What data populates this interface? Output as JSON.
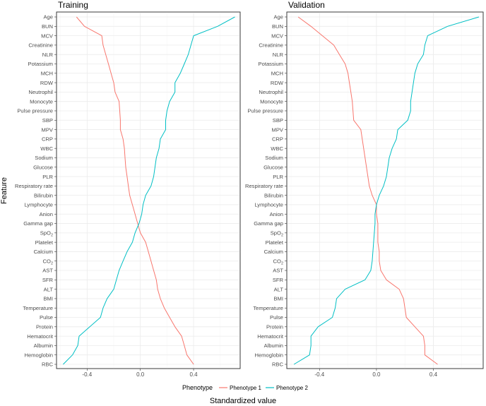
{
  "chart_data": {
    "type": "line",
    "orientation": "horizontal-profile",
    "xlabel": "Standardized value",
    "ylabel": "Feature",
    "xlim": [
      -0.63,
      0.75
    ],
    "xticks": [
      "-0.4",
      "0.0",
      "0.4"
    ],
    "xtick_values": [
      -0.4,
      0.0,
      0.4
    ],
    "features": [
      "Age",
      "BUN",
      "MCV",
      "Creatinine",
      "NLR",
      "Potassium",
      "MCH",
      "RDW",
      "Neutrophil",
      "Monocyte",
      "Pulse pressure",
      "SBP",
      "MPV",
      "CRP",
      "WBC",
      "Sodium",
      "Glucose",
      "PLR",
      "Respiratory rate",
      "Bilirubin",
      "Lymphocyte",
      "Anion",
      "Gamma gap",
      "SpO2",
      "Platelet",
      "Calcium",
      "CO2",
      "AST",
      "SFR",
      "ALT",
      "BMI",
      "Temperature",
      "Pulse",
      "Protein",
      "Hematocrit",
      "Albumin",
      "Hemoglobin",
      "RBC"
    ],
    "grid": true,
    "legend": {
      "title": "Phenotype",
      "position": "bottom"
    },
    "panels": [
      {
        "title": "Training",
        "series": [
          {
            "name": "Phenotype 1",
            "color": "#F8766D",
            "values": [
              -0.48,
              -0.42,
              -0.29,
              -0.28,
              -0.26,
              -0.24,
              -0.22,
              -0.2,
              -0.19,
              -0.16,
              -0.155,
              -0.15,
              -0.15,
              -0.13,
              -0.12,
              -0.115,
              -0.11,
              -0.1,
              -0.09,
              -0.08,
              -0.06,
              -0.04,
              -0.02,
              0.0,
              0.04,
              0.06,
              0.08,
              0.1,
              0.12,
              0.13,
              0.15,
              0.18,
              0.22,
              0.26,
              0.31,
              0.33,
              0.35,
              0.4
            ]
          },
          {
            "name": "Phenotype 2",
            "color": "#00BFC4",
            "values": [
              0.71,
              0.58,
              0.4,
              0.38,
              0.36,
              0.33,
              0.3,
              0.26,
              0.26,
              0.22,
              0.2,
              0.19,
              0.19,
              0.15,
              0.14,
              0.12,
              0.11,
              0.1,
              0.08,
              0.04,
              0.02,
              0.01,
              -0.01,
              -0.04,
              -0.06,
              -0.1,
              -0.13,
              -0.16,
              -0.18,
              -0.2,
              -0.25,
              -0.28,
              -0.3,
              -0.38,
              -0.46,
              -0.47,
              -0.51,
              -0.58
            ]
          }
        ]
      },
      {
        "title": "Validation",
        "series": [
          {
            "name": "Phenotype 1",
            "color": "#F8766D",
            "values": [
              -0.55,
              -0.46,
              -0.38,
              -0.3,
              -0.26,
              -0.22,
              -0.2,
              -0.19,
              -0.18,
              -0.17,
              -0.165,
              -0.16,
              -0.11,
              -0.1,
              -0.09,
              -0.08,
              -0.07,
              -0.06,
              -0.05,
              -0.03,
              0.0,
              0.0,
              0.01,
              0.01,
              0.01,
              0.02,
              0.02,
              0.03,
              0.07,
              0.16,
              0.19,
              0.2,
              0.21,
              0.27,
              0.33,
              0.34,
              0.34,
              0.43
            ]
          },
          {
            "name": "Phenotype 2",
            "color": "#00BFC4",
            "values": [
              0.72,
              0.5,
              0.36,
              0.34,
              0.33,
              0.29,
              0.27,
              0.26,
              0.25,
              0.24,
              0.24,
              0.22,
              0.15,
              0.14,
              0.11,
              0.09,
              0.08,
              0.07,
              0.05,
              0.02,
              0.0,
              -0.01,
              -0.01,
              -0.015,
              -0.02,
              -0.025,
              -0.03,
              -0.04,
              -0.08,
              -0.22,
              -0.28,
              -0.29,
              -0.31,
              -0.41,
              -0.46,
              -0.46,
              -0.47,
              -0.58
            ]
          }
        ]
      }
    ]
  }
}
